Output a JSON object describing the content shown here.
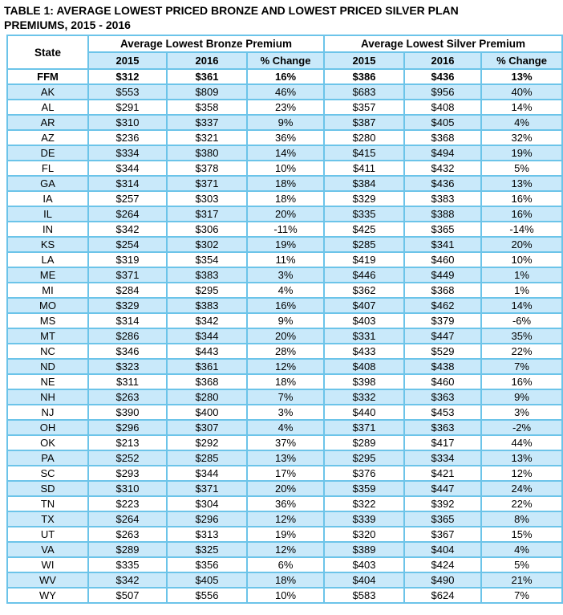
{
  "title": {
    "line1": "TABLE 1: AVERAGE LOWEST PRICED BRONZE AND LOWEST PRICED SILVER PLAN",
    "line2": "PREMIUMS, 2015 - 2016"
  },
  "table": {
    "header": {
      "state": "State",
      "bronze_group": "Average Lowest Bronze Premium",
      "silver_group": "Average Lowest Silver Premium",
      "sub": [
        "2015",
        "2016",
        "% Change",
        "2015",
        "2016",
        "% Change"
      ]
    }
  },
  "colors": {
    "stripe": "#c9e9fa",
    "border": "#6cc4e9",
    "text": "#000000",
    "background": "#ffffff"
  },
  "chart_data": {
    "type": "table",
    "title": "TABLE 1: AVERAGE LOWEST PRICED BRONZE AND LOWEST PRICED SILVER PLAN PREMIUMS, 2015 - 2016",
    "column_groups": [
      "State",
      "Average Lowest Bronze Premium",
      "Average Lowest Silver Premium"
    ],
    "columns": [
      "State",
      "Bronze 2015",
      "Bronze 2016",
      "Bronze % Change",
      "Silver 2015",
      "Silver 2016",
      "Silver % Change"
    ],
    "rows": [
      [
        "FFM",
        "$312",
        "$361",
        "16%",
        "$386",
        "$436",
        "13%"
      ],
      [
        "AK",
        "$553",
        "$809",
        "46%",
        "$683",
        "$956",
        "40%"
      ],
      [
        "AL",
        "$291",
        "$358",
        "23%",
        "$357",
        "$408",
        "14%"
      ],
      [
        "AR",
        "$310",
        "$337",
        "9%",
        "$387",
        "$405",
        "4%"
      ],
      [
        "AZ",
        "$236",
        "$321",
        "36%",
        "$280",
        "$368",
        "32%"
      ],
      [
        "DE",
        "$334",
        "$380",
        "14%",
        "$415",
        "$494",
        "19%"
      ],
      [
        "FL",
        "$344",
        "$378",
        "10%",
        "$411",
        "$432",
        "5%"
      ],
      [
        "GA",
        "$314",
        "$371",
        "18%",
        "$384",
        "$436",
        "13%"
      ],
      [
        "IA",
        "$257",
        "$303",
        "18%",
        "$329",
        "$383",
        "16%"
      ],
      [
        "IL",
        "$264",
        "$317",
        "20%",
        "$335",
        "$388",
        "16%"
      ],
      [
        "IN",
        "$342",
        "$306",
        "-11%",
        "$425",
        "$365",
        "-14%"
      ],
      [
        "KS",
        "$254",
        "$302",
        "19%",
        "$285",
        "$341",
        "20%"
      ],
      [
        "LA",
        "$319",
        "$354",
        "11%",
        "$419",
        "$460",
        "10%"
      ],
      [
        "ME",
        "$371",
        "$383",
        "3%",
        "$446",
        "$449",
        "1%"
      ],
      [
        "MI",
        "$284",
        "$295",
        "4%",
        "$362",
        "$368",
        "1%"
      ],
      [
        "MO",
        "$329",
        "$383",
        "16%",
        "$407",
        "$462",
        "14%"
      ],
      [
        "MS",
        "$314",
        "$342",
        "9%",
        "$403",
        "$379",
        "-6%"
      ],
      [
        "MT",
        "$286",
        "$344",
        "20%",
        "$331",
        "$447",
        "35%"
      ],
      [
        "NC",
        "$346",
        "$443",
        "28%",
        "$433",
        "$529",
        "22%"
      ],
      [
        "ND",
        "$323",
        "$361",
        "12%",
        "$408",
        "$438",
        "7%"
      ],
      [
        "NE",
        "$311",
        "$368",
        "18%",
        "$398",
        "$460",
        "16%"
      ],
      [
        "NH",
        "$263",
        "$280",
        "7%",
        "$332",
        "$363",
        "9%"
      ],
      [
        "NJ",
        "$390",
        "$400",
        "3%",
        "$440",
        "$453",
        "3%"
      ],
      [
        "OH",
        "$296",
        "$307",
        "4%",
        "$371",
        "$363",
        "-2%"
      ],
      [
        "OK",
        "$213",
        "$292",
        "37%",
        "$289",
        "$417",
        "44%"
      ],
      [
        "PA",
        "$252",
        "$285",
        "13%",
        "$295",
        "$334",
        "13%"
      ],
      [
        "SC",
        "$293",
        "$344",
        "17%",
        "$376",
        "$421",
        "12%"
      ],
      [
        "SD",
        "$310",
        "$371",
        "20%",
        "$359",
        "$447",
        "24%"
      ],
      [
        "TN",
        "$223",
        "$304",
        "36%",
        "$322",
        "$392",
        "22%"
      ],
      [
        "TX",
        "$264",
        "$296",
        "12%",
        "$339",
        "$365",
        "8%"
      ],
      [
        "UT",
        "$263",
        "$313",
        "19%",
        "$320",
        "$367",
        "15%"
      ],
      [
        "VA",
        "$289",
        "$325",
        "12%",
        "$389",
        "$404",
        "4%"
      ],
      [
        "WI",
        "$335",
        "$356",
        "6%",
        "$403",
        "$424",
        "5%"
      ],
      [
        "WV",
        "$342",
        "$405",
        "18%",
        "$404",
        "$490",
        "21%"
      ],
      [
        "WY",
        "$507",
        "$556",
        "10%",
        "$583",
        "$624",
        "7%"
      ]
    ]
  }
}
